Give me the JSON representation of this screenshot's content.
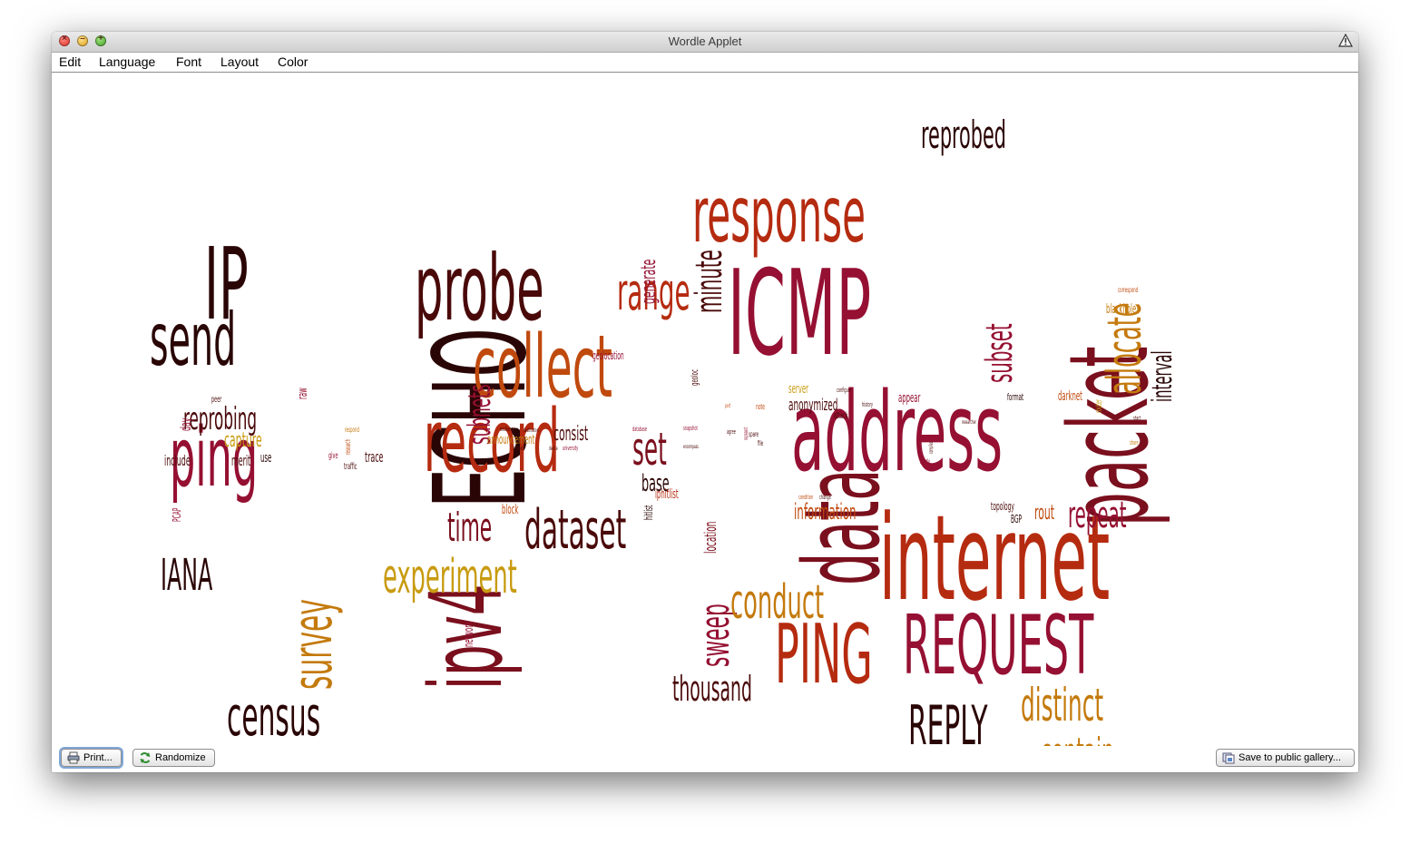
{
  "window": {
    "title": "Wordle Applet"
  },
  "menu": [
    {
      "label": "Edit"
    },
    {
      "label": "Language"
    },
    {
      "label": "Font"
    },
    {
      "label": "Layout"
    },
    {
      "label": "Color"
    }
  ],
  "buttons": {
    "print": "Print...",
    "randomize": "Randomize",
    "save_gallery": "Save to public gallery..."
  },
  "colors": {
    "darkest": "#2a0505",
    "dark": "#4a0909",
    "maroon": "#7a0f1d",
    "crimson": "#951032",
    "red": "#b52b10",
    "orange": "#c04a0e",
    "amber": "#c47a0d",
    "gold": "#c89b10"
  },
  "words": [
    {
      "text": "IP",
      "color": "#2a0505"
    },
    {
      "text": "send",
      "color": "#2a0505"
    },
    {
      "text": "ping",
      "color": "#951032"
    },
    {
      "text": "ECHO",
      "color": "#2a0505"
    },
    {
      "text": "ipv4",
      "color": "#7a0f1d"
    },
    {
      "text": "census",
      "color": "#2a0505"
    },
    {
      "text": "survey",
      "color": "#c47a0d"
    },
    {
      "text": "IANA",
      "color": "#2a0505"
    },
    {
      "text": "reprobing",
      "color": "#4a0909"
    },
    {
      "text": "capture",
      "color": "#c89b10"
    },
    {
      "text": "include",
      "color": "#4a0909"
    },
    {
      "text": "merit",
      "color": "#4a0909"
    },
    {
      "text": "trace",
      "color": "#4a0909"
    },
    {
      "text": "day",
      "color": "#951032"
    },
    {
      "text": "raw",
      "color": "#951032"
    },
    {
      "text": "PCAP",
      "color": "#951032"
    },
    {
      "text": "use",
      "color": "#2a0505"
    },
    {
      "text": "probe",
      "color": "#4a0909"
    },
    {
      "text": "collect",
      "color": "#c04a0e"
    },
    {
      "text": "record",
      "color": "#b52b10"
    },
    {
      "text": "subnets",
      "color": "#951032"
    },
    {
      "text": "range",
      "color": "#b52b10"
    },
    {
      "text": "minute",
      "color": "#4a0909"
    },
    {
      "text": "generate",
      "color": "#951032"
    },
    {
      "text": "set",
      "color": "#7a0f1d"
    },
    {
      "text": "base",
      "color": "#2a0505"
    },
    {
      "text": "consist",
      "color": "#4a0909"
    },
    {
      "text": "announcement",
      "color": "#c47a0d"
    },
    {
      "text": "geolocation",
      "color": "#951032"
    },
    {
      "text": "time",
      "color": "#7a0f1d"
    },
    {
      "text": "dataset",
      "color": "#4a0909"
    },
    {
      "text": "experiment",
      "color": "#c89b10"
    },
    {
      "text": "block",
      "color": "#c04a0e"
    },
    {
      "text": "network",
      "color": "#951032"
    },
    {
      "text": "iphitlist",
      "color": "#b52b10"
    },
    {
      "text": "hitlist",
      "color": "#2a0505"
    },
    {
      "text": "sweep",
      "color": "#951032"
    },
    {
      "text": "location",
      "color": "#7a0f1d"
    },
    {
      "text": "thousand",
      "color": "#4a0909"
    },
    {
      "text": "response",
      "color": "#b52b10"
    },
    {
      "text": "ICMP",
      "color": "#951032"
    },
    {
      "text": "data",
      "color": "#7a0f1d"
    },
    {
      "text": "packet",
      "color": "#7a0f1d"
    },
    {
      "text": "reprobed",
      "color": "#2a0505"
    },
    {
      "text": "address",
      "color": "#951032"
    },
    {
      "text": "internet",
      "color": "#b52b10"
    },
    {
      "text": "PING",
      "color": "#b52b10"
    },
    {
      "text": "REQUEST",
      "color": "#951032"
    },
    {
      "text": "REPLY",
      "color": "#2a0505"
    },
    {
      "text": "distinct",
      "color": "#c47a0d"
    },
    {
      "text": "contain",
      "color": "#c47a0d"
    },
    {
      "text": "conduct",
      "color": "#c47a0d"
    },
    {
      "text": "information",
      "color": "#c04a0e"
    },
    {
      "text": "anonymized",
      "color": "#4a0909"
    },
    {
      "text": "server",
      "color": "#c89b10"
    },
    {
      "text": "attack",
      "color": "#4a0909"
    },
    {
      "text": "appear",
      "color": "#951032"
    },
    {
      "text": "subset",
      "color": "#951032"
    },
    {
      "text": "allocate",
      "color": "#c47a0d"
    },
    {
      "text": "interval",
      "color": "#2a0505"
    },
    {
      "text": "blackhole",
      "color": "#c47a0d"
    },
    {
      "text": "darknet",
      "color": "#c04a0e"
    },
    {
      "text": "format",
      "color": "#2a0505"
    },
    {
      "text": "router",
      "color": "#c89b10"
    },
    {
      "text": "repeat",
      "color": "#951032"
    },
    {
      "text": "rout",
      "color": "#c04a0e"
    },
    {
      "text": "topology",
      "color": "#4a0909"
    },
    {
      "text": "BGP",
      "color": "#2a0505"
    },
    {
      "text": "geoloc",
      "color": "#4a0909"
    },
    {
      "text": "note",
      "color": "#c04a0e"
    },
    {
      "text": "history",
      "color": "#4a0909"
    },
    {
      "text": "configure",
      "color": "#4a0909"
    },
    {
      "text": "correspond",
      "color": "#c04a0e"
    },
    {
      "text": "snapshot",
      "color": "#951032"
    },
    {
      "text": "peer",
      "color": "#4a0909"
    },
    {
      "text": "traffic",
      "color": "#4a0909"
    },
    {
      "text": "give",
      "color": "#951032"
    },
    {
      "text": "research",
      "color": "#c04a0e"
    },
    {
      "text": "respond",
      "color": "#c47a0d"
    },
    {
      "text": "exchange",
      "color": "#4a0909"
    },
    {
      "text": "destination",
      "color": "#4a0909"
    },
    {
      "text": "university",
      "color": "#951032"
    },
    {
      "text": "datasets",
      "color": "#4a0909"
    },
    {
      "text": "device",
      "color": "#4a0909"
    },
    {
      "text": "database",
      "color": "#951032"
    },
    {
      "text": "encompass",
      "color": "#4a0909"
    },
    {
      "text": "agree",
      "color": "#4a0909"
    },
    {
      "text": "port",
      "color": "#c04a0e"
    },
    {
      "text": "spare",
      "color": "#4a0909"
    },
    {
      "text": "file",
      "color": "#4a0909"
    },
    {
      "text": "represent",
      "color": "#951032"
    },
    {
      "text": "condition",
      "color": "#c04a0e"
    },
    {
      "text": "change",
      "color": "#4a0909"
    },
    {
      "text": "study",
      "color": "#951032"
    },
    {
      "text": "compiles",
      "color": "#4a0909"
    },
    {
      "text": "share",
      "color": "#c47a0d"
    },
    {
      "text": "start",
      "color": "#4a0909"
    },
    {
      "text": "researcher",
      "color": "#4a0909"
    }
  ]
}
